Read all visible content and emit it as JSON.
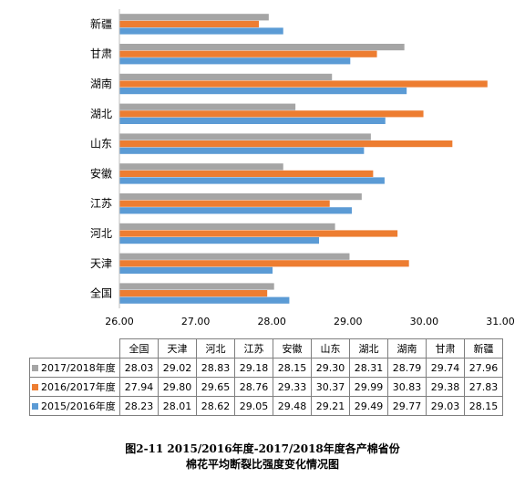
{
  "chart_data": {
    "type": "bar",
    "orientation": "horizontal",
    "categories": [
      "全国",
      "天津",
      "河北",
      "江苏",
      "安徽",
      "山东",
      "湖北",
      "湖南",
      "甘肃",
      "新疆"
    ],
    "series": [
      {
        "name": "2017/2018年度",
        "color": "#a5a5a5",
        "values": [
          28.03,
          29.02,
          28.83,
          29.18,
          28.15,
          29.3,
          28.31,
          28.79,
          29.74,
          27.96
        ],
        "display": [
          "28.03",
          "29.02",
          "28.83",
          "29.18",
          "28.15",
          "29.30",
          "28.31",
          "28.79",
          "29.74",
          "27.96"
        ]
      },
      {
        "name": "2016/2017年度",
        "color": "#ed7d31",
        "values": [
          27.94,
          29.8,
          29.65,
          28.76,
          29.33,
          30.37,
          29.99,
          30.83,
          29.38,
          27.83
        ],
        "display": [
          "27.94",
          "29.80",
          "29.65",
          "28.76",
          "29.33",
          "30.37",
          "29.99",
          "30.83",
          "29.38",
          "27.83"
        ]
      },
      {
        "name": "2015/2016年度",
        "color": "#5b9bd5",
        "values": [
          28.23,
          28.01,
          28.62,
          29.05,
          29.48,
          29.21,
          29.49,
          29.77,
          29.03,
          28.15
        ],
        "display": [
          "28.23",
          "28.01",
          "28.62",
          "29.05",
          "29.48",
          "29.21",
          "29.49",
          "29.77",
          "29.03",
          "28.15"
        ]
      }
    ],
    "xlim": [
      26,
      31
    ],
    "x_ticks": [
      "26.00",
      "27.00",
      "28.00",
      "29.00",
      "30.00",
      "31.00"
    ],
    "grid": false,
    "legend": "data-table"
  },
  "caption": {
    "line1": "图2-11  2015/2016年度-2017/2018年度各产棉省份",
    "line2": "棉花平均断裂比强度变化情况图"
  }
}
